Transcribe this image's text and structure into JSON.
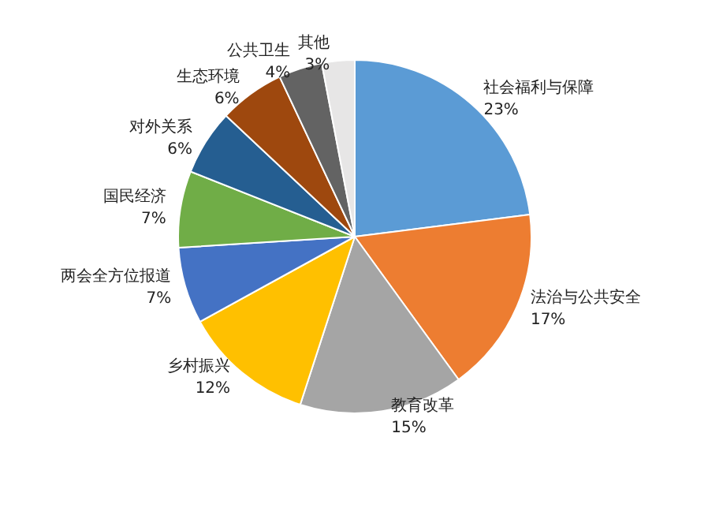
{
  "chart_data": {
    "type": "pie",
    "categories": [
      "社会福利与保障",
      "法治与公共安全",
      "教育改革",
      "乡村振兴",
      "两会全方位报道",
      "国民经济",
      "对外关系",
      "生态环境",
      "公共卫生",
      "其他"
    ],
    "values": [
      23,
      17,
      15,
      12,
      7,
      7,
      6,
      6,
      4,
      3
    ],
    "value_labels": [
      "23%",
      "17%",
      "15%",
      "12%",
      "7%",
      "7%",
      "6%",
      "6%",
      "4%",
      "3%"
    ],
    "colors": [
      "#5b9bd5",
      "#ed7d31",
      "#a5a5a5",
      "#ffc000",
      "#4472c4",
      "#70ad47",
      "#255e91",
      "#9e480e",
      "#636363",
      "#e7e6e6"
    ],
    "legend": false
  }
}
